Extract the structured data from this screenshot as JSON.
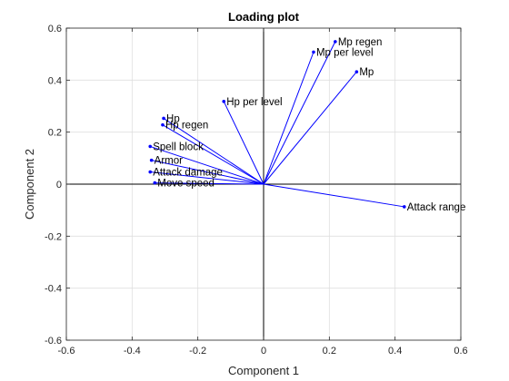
{
  "chart_data": {
    "type": "biplot",
    "title": "Loading plot",
    "xlabel": "Component 1",
    "ylabel": "Component 2",
    "xlim": [
      -0.6,
      0.6
    ],
    "ylim": [
      -0.6,
      0.6
    ],
    "xticks": [
      "-0.6",
      "-0.4",
      "-0.2",
      "0",
      "0.2",
      "0.4",
      "0.6"
    ],
    "yticks": [
      "-0.6",
      "-0.4",
      "-0.2",
      "0",
      "0.2",
      "0.4",
      "0.6"
    ],
    "xtick_values": [
      -0.6,
      -0.4,
      -0.2,
      0,
      0.2,
      0.4,
      0.6
    ],
    "ytick_values": [
      -0.6,
      -0.4,
      -0.2,
      0,
      0.2,
      0.4,
      0.6
    ],
    "grid": true,
    "vector_color": "#0000ff",
    "vectors": [
      {
        "name": "Mp regen",
        "x": 0.218,
        "y": 0.548
      },
      {
        "name": "Mp per level",
        "x": 0.152,
        "y": 0.508
      },
      {
        "name": "Mp",
        "x": 0.283,
        "y": 0.432
      },
      {
        "name": "Hp per level",
        "x": -0.121,
        "y": 0.318
      },
      {
        "name": "Hp",
        "x": -0.304,
        "y": 0.253
      },
      {
        "name": "Hp regen",
        "x": -0.307,
        "y": 0.228
      },
      {
        "name": "Spell block",
        "x": -0.345,
        "y": 0.145
      },
      {
        "name": "Armor",
        "x": -0.341,
        "y": 0.092
      },
      {
        "name": "Attack damage",
        "x": -0.345,
        "y": 0.047
      },
      {
        "name": "Move speed",
        "x": -0.331,
        "y": 0.005
      },
      {
        "name": "Attack range",
        "x": 0.428,
        "y": -0.087
      }
    ]
  }
}
